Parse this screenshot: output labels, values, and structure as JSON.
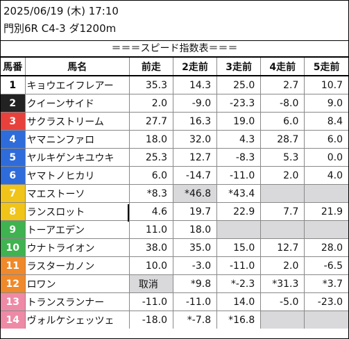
{
  "header": {
    "datetime": "2025/06/19 (木) 17:10",
    "race": "門別6R C4-3 ダ1200m"
  },
  "table": {
    "title": "＝＝＝スピード指数表＝＝＝",
    "columns": [
      "馬番",
      "馬名",
      "前走",
      "2走前",
      "3走前",
      "4走前",
      "5走前"
    ],
    "rows": [
      {
        "num": "1",
        "name": "キョウエイフレアー",
        "vals": [
          "35.3",
          "14.3",
          "25.0",
          "2.7",
          "10.7"
        ],
        "gray": [
          false,
          false,
          false,
          false,
          false
        ],
        "color": "#ffffff",
        "textColor": "#000000"
      },
      {
        "num": "2",
        "name": "クイーンサイド",
        "vals": [
          "2.0",
          "-9.0",
          "-23.3",
          "-8.0",
          "9.0"
        ],
        "gray": [
          false,
          false,
          false,
          false,
          false
        ],
        "color": "#222222",
        "textColor": "#ffffff"
      },
      {
        "num": "3",
        "name": "サクラストリーム",
        "vals": [
          "27.7",
          "16.3",
          "19.0",
          "6.0",
          "8.4"
        ],
        "gray": [
          false,
          false,
          false,
          false,
          false
        ],
        "color": "#e8413c",
        "textColor": "#ffffff"
      },
      {
        "num": "4",
        "name": "ヤマニンファロ",
        "vals": [
          "18.0",
          "32.0",
          "4.3",
          "28.7",
          "6.0"
        ],
        "gray": [
          false,
          false,
          false,
          false,
          false
        ],
        "color": "#2e6cdb",
        "textColor": "#ffffff"
      },
      {
        "num": "5",
        "name": "ヤルキゲンキユウキ",
        "vals": [
          "25.3",
          "12.7",
          "-8.3",
          "5.3",
          "0.0"
        ],
        "gray": [
          false,
          false,
          false,
          false,
          false
        ],
        "color": "#2e6cdb",
        "textColor": "#ffffff"
      },
      {
        "num": "6",
        "name": "ヤマトノヒカリ",
        "vals": [
          "6.0",
          "-14.7",
          "-11.0",
          "2.0",
          "4.0"
        ],
        "gray": [
          false,
          false,
          false,
          false,
          false
        ],
        "color": "#2e6cdb",
        "textColor": "#ffffff"
      },
      {
        "num": "7",
        "name": "マエストーソ",
        "vals": [
          "*8.3",
          "*46.8",
          "*43.4",
          "",
          ""
        ],
        "gray": [
          false,
          true,
          false,
          true,
          true
        ],
        "color": "#f0c419",
        "textColor": "#ffffff"
      },
      {
        "num": "8",
        "name": "ランスロット",
        "vals": [
          "4.6",
          "19.7",
          "22.9",
          "7.7",
          "21.9"
        ],
        "gray": [
          false,
          false,
          false,
          false,
          false
        ],
        "color": "#f0c419",
        "textColor": "#ffffff"
      },
      {
        "num": "9",
        "name": "トーアエデン",
        "vals": [
          "11.0",
          "18.0",
          "",
          "",
          ""
        ],
        "gray": [
          false,
          false,
          true,
          true,
          true
        ],
        "color": "#3fb34f",
        "textColor": "#ffffff"
      },
      {
        "num": "10",
        "name": "ウナトライオン",
        "vals": [
          "38.0",
          "35.0",
          "15.0",
          "12.7",
          "28.0"
        ],
        "gray": [
          false,
          false,
          false,
          false,
          false
        ],
        "color": "#3fb34f",
        "textColor": "#ffffff"
      },
      {
        "num": "11",
        "name": "ラスターカノン",
        "vals": [
          "10.0",
          "-3.0",
          "-11.0",
          "2.0",
          "-6.5"
        ],
        "gray": [
          false,
          false,
          false,
          false,
          false
        ],
        "color": "#f0892a",
        "textColor": "#ffffff"
      },
      {
        "num": "12",
        "name": "ロワン",
        "vals": [
          "取消",
          "*9.8",
          "*-2.3",
          "*31.3",
          "*3.7"
        ],
        "gray": [
          true,
          false,
          false,
          false,
          false
        ],
        "color": "#f0892a",
        "textColor": "#ffffff"
      },
      {
        "num": "13",
        "name": "トランスランナー",
        "vals": [
          "-11.0",
          "-11.0",
          "14.0",
          "-5.0",
          "-23.0"
        ],
        "gray": [
          false,
          false,
          false,
          false,
          false
        ],
        "color": "#ee8aa6",
        "textColor": "#ffffff"
      },
      {
        "num": "14",
        "name": "ヴォルケシェッツェ",
        "vals": [
          "-18.0",
          "*-7.8",
          "*16.8",
          "",
          ""
        ],
        "gray": [
          false,
          false,
          false,
          true,
          true
        ],
        "color": "#ee8aa6",
        "textColor": "#ffffff"
      }
    ]
  }
}
